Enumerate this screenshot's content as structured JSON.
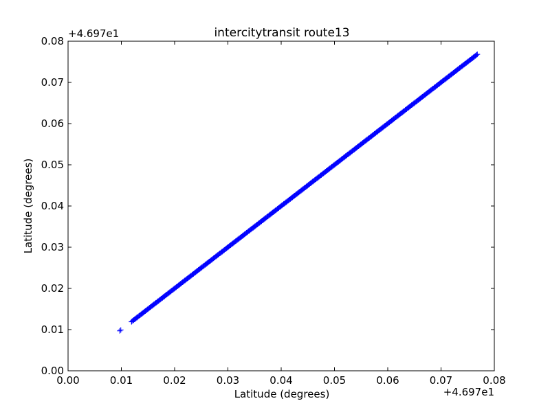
{
  "chart_data": {
    "type": "scatter",
    "title": "intercitytransit route13",
    "xlabel": "Latitude (degrees)",
    "ylabel": "Latitude (degrees)",
    "x_offset_label": "+4.697e1",
    "y_offset_label": "+4.697e1",
    "xlim": [
      0.0,
      0.08
    ],
    "ylim": [
      0.0,
      0.08
    ],
    "x_ticks": [
      0.0,
      0.01,
      0.02,
      0.03,
      0.04,
      0.05,
      0.06,
      0.07,
      0.08
    ],
    "x_tick_labels": [
      "0.00",
      "0.01",
      "0.02",
      "0.03",
      "0.04",
      "0.05",
      "0.06",
      "0.07",
      "0.08"
    ],
    "y_ticks": [
      0.0,
      0.01,
      0.02,
      0.03,
      0.04,
      0.05,
      0.06,
      0.07,
      0.08
    ],
    "y_tick_labels": [
      "0.00",
      "0.01",
      "0.02",
      "0.03",
      "0.04",
      "0.05",
      "0.06",
      "0.07",
      "0.08"
    ],
    "grid": false,
    "marker": "+",
    "marker_color": "#0000ff",
    "series": [
      {
        "x": [
          0.0097,
          0.0099,
          0.0119,
          0.0125,
          0.0135,
          0.0145,
          0.0155,
          0.0165,
          0.0175,
          0.0185,
          0.0195,
          0.0205,
          0.0215,
          0.0225,
          0.0235,
          0.0245,
          0.0255,
          0.0265,
          0.0275,
          0.0285,
          0.0295,
          0.0305,
          0.0315,
          0.0325,
          0.0335,
          0.0345,
          0.0355,
          0.0365,
          0.0375,
          0.0385,
          0.0395,
          0.0405,
          0.0415,
          0.0425,
          0.0435,
          0.0445,
          0.0455,
          0.0465,
          0.0475,
          0.0485,
          0.0495,
          0.0505,
          0.0515,
          0.0525,
          0.0535,
          0.0545,
          0.0555,
          0.0565,
          0.0575,
          0.0585,
          0.0595,
          0.0605,
          0.0615,
          0.0625,
          0.0635,
          0.0645,
          0.0655,
          0.0665,
          0.0675,
          0.0685,
          0.0695,
          0.0705,
          0.0715,
          0.0725,
          0.0735,
          0.0745,
          0.0755,
          0.0762,
          0.0768
        ],
        "y": [
          0.0097,
          0.0099,
          0.0119,
          0.0125,
          0.0135,
          0.0145,
          0.0155,
          0.0165,
          0.0175,
          0.0185,
          0.0195,
          0.0205,
          0.0215,
          0.0225,
          0.0235,
          0.0245,
          0.0255,
          0.0265,
          0.0275,
          0.0285,
          0.0295,
          0.0305,
          0.0315,
          0.0325,
          0.0335,
          0.0345,
          0.0355,
          0.0365,
          0.0375,
          0.0385,
          0.0395,
          0.0405,
          0.0415,
          0.0425,
          0.0435,
          0.0445,
          0.0455,
          0.0465,
          0.0475,
          0.0485,
          0.0495,
          0.0505,
          0.0515,
          0.0525,
          0.0535,
          0.0545,
          0.0555,
          0.0565,
          0.0575,
          0.0585,
          0.0595,
          0.0605,
          0.0615,
          0.0625,
          0.0635,
          0.0645,
          0.0655,
          0.0665,
          0.0675,
          0.0685,
          0.0695,
          0.0705,
          0.0715,
          0.0725,
          0.0735,
          0.0745,
          0.0755,
          0.0762,
          0.0768
        ]
      }
    ]
  }
}
